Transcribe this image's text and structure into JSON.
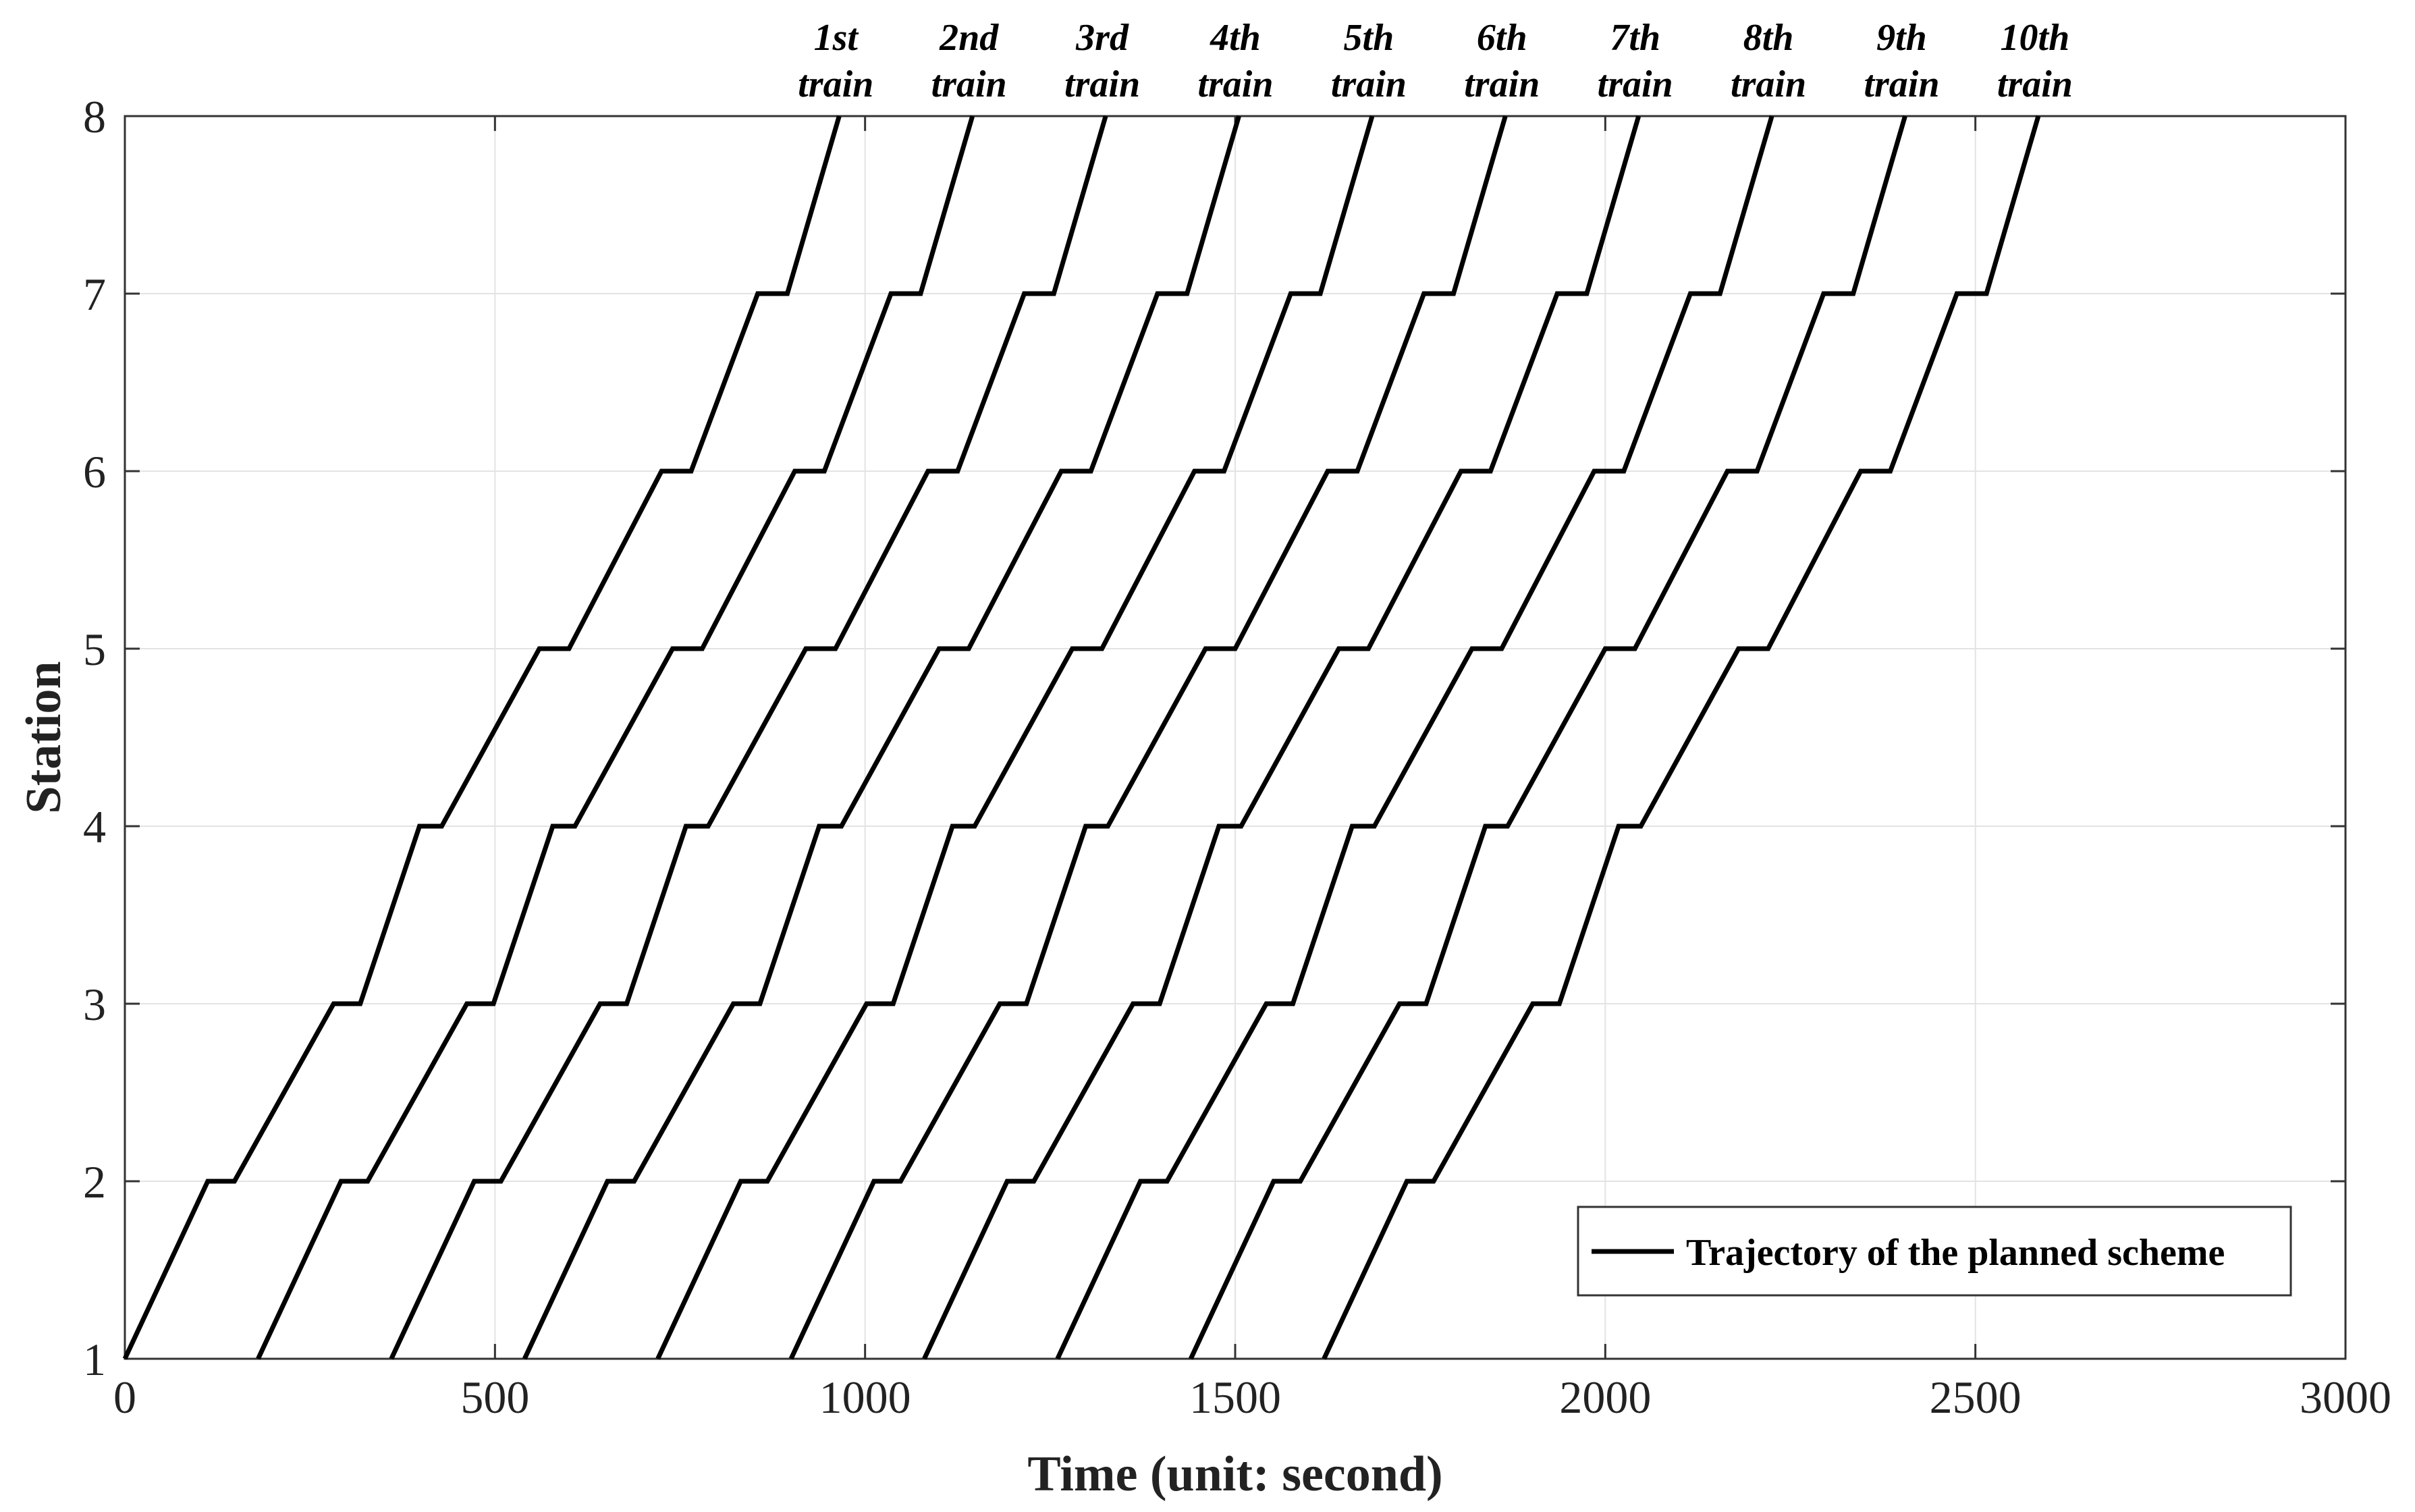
{
  "chart_data": {
    "type": "line",
    "title": "",
    "xlabel": "Time (unit: second)",
    "ylabel": "Station",
    "xlim": [
      0,
      3000
    ],
    "ylim": [
      1,
      8
    ],
    "xticks": [
      "0",
      "500",
      "1000",
      "1500",
      "2000",
      "2500",
      "3000"
    ],
    "yticks": [
      "1",
      "2",
      "3",
      "4",
      "5",
      "6",
      "7",
      "8"
    ],
    "grid": true,
    "legend": {
      "position": "bottom-right",
      "entries": [
        "Trajectory of the planned scheme"
      ]
    },
    "line_color": "#000000",
    "grid_color": "#e3e3e3",
    "annotations": [
      {
        "line1": "1st",
        "line2": "train"
      },
      {
        "line1": "2nd",
        "line2": "train"
      },
      {
        "line1": "3rd",
        "line2": "train"
      },
      {
        "line1": "4th",
        "line2": "train"
      },
      {
        "line1": "5th",
        "line2": "train"
      },
      {
        "line1": "6th",
        "line2": "train"
      },
      {
        "line1": "7th",
        "line2": "train"
      },
      {
        "line1": "8th",
        "line2": "train"
      },
      {
        "line1": "9th",
        "line2": "train"
      },
      {
        "line1": "10th",
        "line2": "train"
      }
    ],
    "series": [
      {
        "x": [
          0,
          112,
          148,
          282,
          318,
          398,
          428,
          560,
          600,
          725,
          765,
          855,
          895,
          965
        ],
        "y": [
          1,
          2,
          2,
          3,
          3,
          4,
          4,
          5,
          5,
          6,
          6,
          7,
          7,
          8
        ]
      },
      {
        "x": [
          180,
          292,
          328,
          462,
          498,
          578,
          608,
          740,
          780,
          905,
          945,
          1035,
          1075,
          1145
        ],
        "y": [
          1,
          2,
          2,
          3,
          3,
          4,
          4,
          5,
          5,
          6,
          6,
          7,
          7,
          8
        ]
      },
      {
        "x": [
          360,
          472,
          508,
          642,
          678,
          758,
          788,
          920,
          960,
          1085,
          1125,
          1215,
          1255,
          1325
        ],
        "y": [
          1,
          2,
          2,
          3,
          3,
          4,
          4,
          5,
          5,
          6,
          6,
          7,
          7,
          8
        ]
      },
      {
        "x": [
          540,
          652,
          688,
          822,
          858,
          938,
          968,
          1100,
          1140,
          1265,
          1305,
          1395,
          1435,
          1505
        ],
        "y": [
          1,
          2,
          2,
          3,
          3,
          4,
          4,
          5,
          5,
          6,
          6,
          7,
          7,
          8
        ]
      },
      {
        "x": [
          720,
          832,
          868,
          1002,
          1038,
          1118,
          1148,
          1280,
          1320,
          1445,
          1485,
          1575,
          1615,
          1685
        ],
        "y": [
          1,
          2,
          2,
          3,
          3,
          4,
          4,
          5,
          5,
          6,
          6,
          7,
          7,
          8
        ]
      },
      {
        "x": [
          900,
          1012,
          1048,
          1182,
          1218,
          1298,
          1328,
          1460,
          1500,
          1625,
          1665,
          1755,
          1795,
          1865
        ],
        "y": [
          1,
          2,
          2,
          3,
          3,
          4,
          4,
          5,
          5,
          6,
          6,
          7,
          7,
          8
        ]
      },
      {
        "x": [
          1080,
          1192,
          1228,
          1362,
          1398,
          1478,
          1508,
          1640,
          1680,
          1805,
          1845,
          1935,
          1975,
          2045
        ],
        "y": [
          1,
          2,
          2,
          3,
          3,
          4,
          4,
          5,
          5,
          6,
          6,
          7,
          7,
          8
        ]
      },
      {
        "x": [
          1260,
          1372,
          1408,
          1542,
          1578,
          1658,
          1688,
          1820,
          1860,
          1985,
          2025,
          2115,
          2155,
          2225
        ],
        "y": [
          1,
          2,
          2,
          3,
          3,
          4,
          4,
          5,
          5,
          6,
          6,
          7,
          7,
          8
        ]
      },
      {
        "x": [
          1440,
          1552,
          1588,
          1722,
          1758,
          1838,
          1868,
          2000,
          2040,
          2165,
          2205,
          2295,
          2335,
          2405
        ],
        "y": [
          1,
          2,
          2,
          3,
          3,
          4,
          4,
          5,
          5,
          6,
          6,
          7,
          7,
          8
        ]
      },
      {
        "x": [
          1620,
          1732,
          1768,
          1902,
          1938,
          2018,
          2048,
          2180,
          2220,
          2345,
          2385,
          2475,
          2515,
          2585
        ],
        "y": [
          1,
          2,
          2,
          3,
          3,
          4,
          4,
          5,
          5,
          6,
          6,
          7,
          7,
          8
        ]
      }
    ]
  }
}
